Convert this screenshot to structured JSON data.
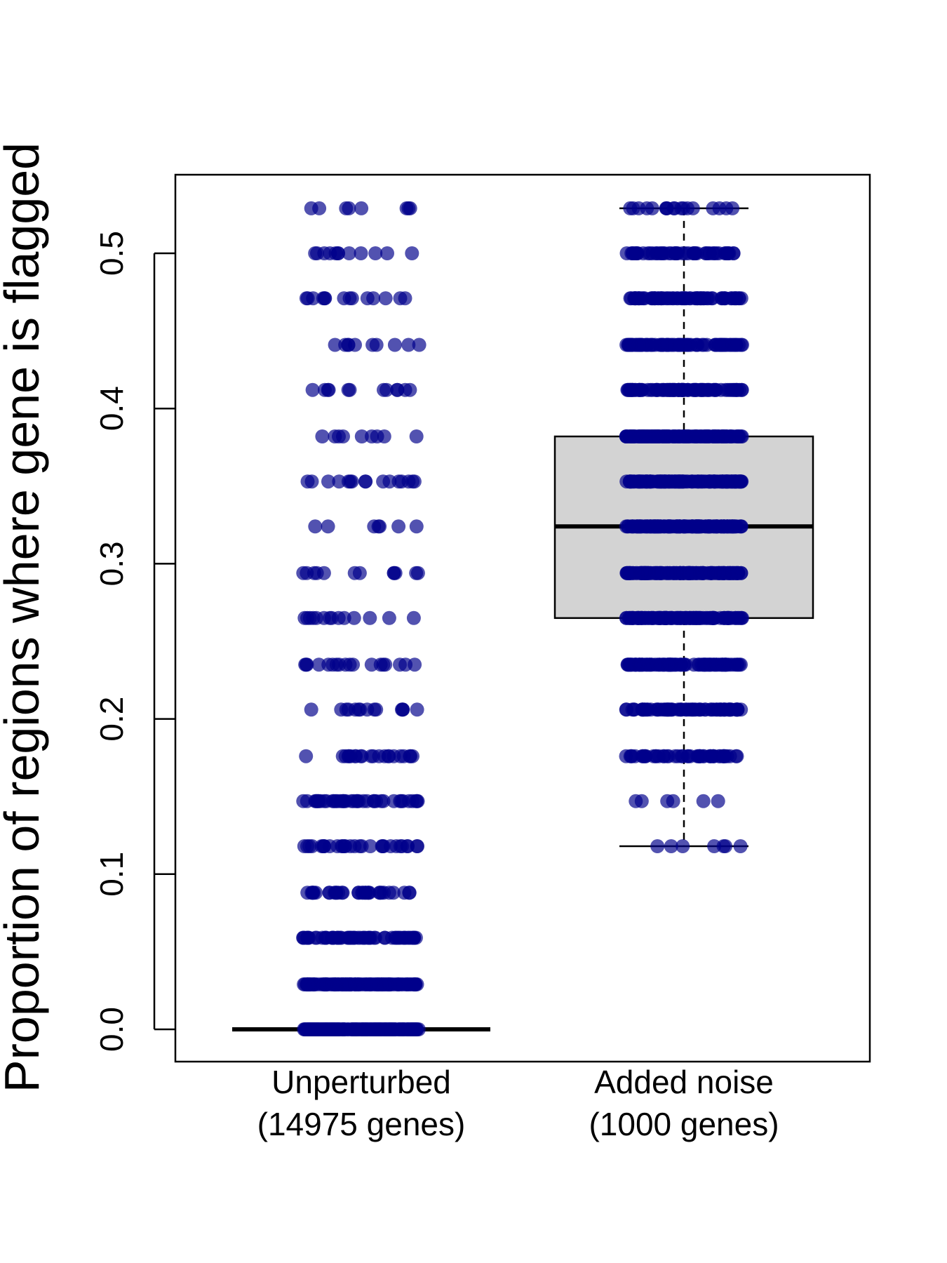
{
  "chart_data": {
    "type": "box",
    "title": "",
    "xlabel": "",
    "ylabel": "Proportion of regions where gene is flagged",
    "ylim": [
      -0.022,
      0.55
    ],
    "yticks": [
      0.0,
      0.1,
      0.2,
      0.3,
      0.4,
      0.5
    ],
    "ytick_labels": [
      "0.0",
      "0.1",
      "0.2",
      "0.3",
      "0.4",
      "0.5"
    ],
    "grid": false,
    "colors": {
      "points": "#00008B",
      "box_fill": "#D3D3D3",
      "lines": "#000000"
    },
    "groups": [
      {
        "label_line1": "Unperturbed",
        "label_line2": "(14975 genes)",
        "box": {
          "q1": 0.0,
          "median": 0.0,
          "q3": 0.0,
          "whisker_low": 0.0,
          "whisker_high": 0.0
        },
        "points": [
          {
            "y": 0.529,
            "n": 8
          },
          {
            "y": 0.5,
            "n": 12
          },
          {
            "y": 0.471,
            "n": 14
          },
          {
            "y": 0.441,
            "n": 10
          },
          {
            "y": 0.412,
            "n": 12
          },
          {
            "y": 0.382,
            "n": 9
          },
          {
            "y": 0.353,
            "n": 16
          },
          {
            "y": 0.324,
            "n": 7
          },
          {
            "y": 0.294,
            "n": 12
          },
          {
            "y": 0.265,
            "n": 14
          },
          {
            "y": 0.235,
            "n": 18
          },
          {
            "y": 0.206,
            "n": 14
          },
          {
            "y": 0.176,
            "n": 22
          },
          {
            "y": 0.147,
            "n": 40
          },
          {
            "y": 0.118,
            "n": 30
          },
          {
            "y": 0.088,
            "n": 32
          },
          {
            "y": 0.059,
            "n": 60
          },
          {
            "y": 0.029,
            "n": 110
          },
          {
            "y": 0.0,
            "n": 170
          }
        ]
      },
      {
        "label_line1": "Added noise",
        "label_line2": "(1000 genes)",
        "box": {
          "q1": 0.265,
          "median": 0.324,
          "q3": 0.382,
          "whisker_low": 0.118,
          "whisker_high": 0.529
        },
        "points": [
          {
            "y": 0.529,
            "n": 18
          },
          {
            "y": 0.5,
            "n": 50
          },
          {
            "y": 0.471,
            "n": 70
          },
          {
            "y": 0.441,
            "n": 80
          },
          {
            "y": 0.412,
            "n": 90
          },
          {
            "y": 0.382,
            "n": 130
          },
          {
            "y": 0.353,
            "n": 140
          },
          {
            "y": 0.324,
            "n": 150
          },
          {
            "y": 0.294,
            "n": 140
          },
          {
            "y": 0.265,
            "n": 120
          },
          {
            "y": 0.235,
            "n": 90
          },
          {
            "y": 0.206,
            "n": 70
          },
          {
            "y": 0.176,
            "n": 50
          },
          {
            "y": 0.147,
            "n": 6
          },
          {
            "y": 0.118,
            "n": 7
          }
        ]
      }
    ]
  }
}
